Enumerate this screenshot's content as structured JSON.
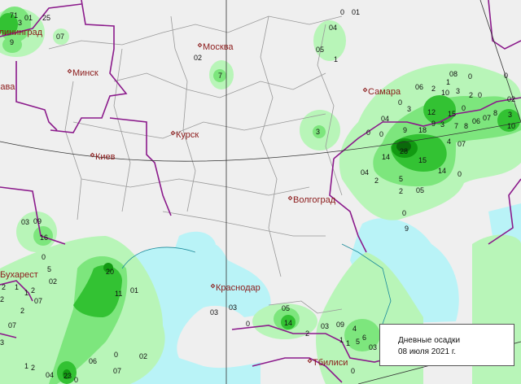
{
  "legend": {
    "title": "Дневные осадки",
    "date": "08 июля 2021 г."
  },
  "colors": {
    "background": "#efefef",
    "sea": "#b9f3f7",
    "light": "#b8f5b8",
    "medium": "#7de67d",
    "strong": "#33c233",
    "heavy": "#129a12",
    "extreme": "#0a6a0a",
    "country_border": "#8b1a8b",
    "region_border": "#999999",
    "city": "#8b1a1a"
  },
  "cities": [
    "Калининград",
    "Варшава",
    "Минск",
    "Москва",
    "Курск",
    "Киев",
    "Самара",
    "Волгоград",
    "Бухарест",
    "Краснодар",
    "Тбилиси"
  ],
  "precip_values": [
    "71",
    "01",
    "25",
    "07",
    "3",
    "9",
    "02",
    "7",
    "0",
    "01",
    "04",
    "05",
    "1",
    "3",
    "08",
    "0",
    "0",
    "06",
    "2",
    "1",
    "10",
    "3",
    "2",
    "0",
    "0",
    "3",
    "12",
    "15",
    "0",
    "02",
    "04",
    "9",
    "18",
    "9",
    "3",
    "7",
    "8",
    "06",
    "07",
    "8",
    "3",
    "10",
    "0",
    "0",
    "4",
    "07",
    "28",
    "14",
    "15",
    "14",
    "04",
    "0",
    "2",
    "5",
    "2",
    "05",
    "0",
    "9",
    "03",
    "09",
    "16",
    "0",
    "5",
    "02",
    "2",
    "1",
    "1",
    "2",
    "2",
    "07",
    "2",
    "07",
    "3",
    "20",
    "11",
    "01",
    "06",
    "0",
    "02",
    "07",
    "1",
    "2",
    "04",
    "23",
    "0",
    "03",
    "03",
    "0",
    "05",
    "14",
    "2",
    "03",
    "09",
    "4",
    "1",
    "1",
    "5",
    "6",
    "03",
    "0"
  ]
}
